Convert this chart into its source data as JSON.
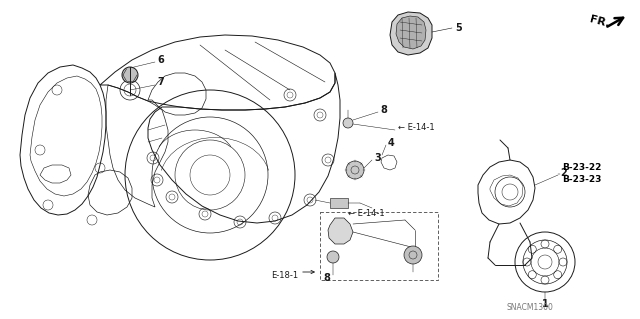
{
  "bg_color": "#ffffff",
  "line_color": "#1a1a1a",
  "label_color": "#000000",
  "bold_label_color": "#000000",
  "gray_fill": "#aaaaaa",
  "light_gray": "#cccccc",
  "fr_text": "FR.",
  "watermark": "SNACM1300",
  "figsize": [
    6.4,
    3.19
  ],
  "dpi": 100,
  "xlim": [
    0,
    640
  ],
  "ylim": [
    0,
    319
  ]
}
